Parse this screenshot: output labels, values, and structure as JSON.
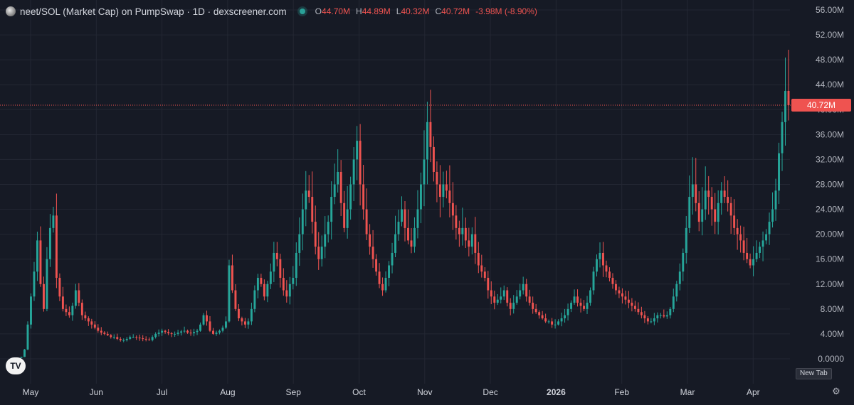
{
  "header": {
    "title": "neet/SOL (Market Cap) on PumpSwap · 1D · dexscreener.com",
    "ohlc": {
      "o_label": "O",
      "o_value": "44.70M",
      "h_label": "H",
      "h_value": "44.89M",
      "l_label": "L",
      "l_value": "40.32M",
      "c_label": "C",
      "c_value": "40.72M",
      "change": "-3.98M (-8.90%)"
    }
  },
  "price_badge": "40.72M",
  "new_tab_label": "New Tab",
  "tv_logo_text": "TV",
  "colors": {
    "up": "#26a69a",
    "down": "#ef5350",
    "background": "#161a25",
    "grid": "#232733"
  },
  "chart_data": {
    "type": "candlestick",
    "y_unit": "market cap (USD)",
    "ylim": [
      0,
      56
    ],
    "y_ticks": [
      "0.0000",
      "4.00M",
      "8.00M",
      "12.00M",
      "16.00M",
      "20.00M",
      "24.00M",
      "28.00M",
      "32.00M",
      "36.00M",
      "40.00M",
      "44.00M",
      "48.00M",
      "52.00M",
      "56.00M"
    ],
    "x_ticks": [
      "May",
      "Jun",
      "Jul",
      "Aug",
      "Sep",
      "Oct",
      "Nov",
      "Dec",
      "2026",
      "Feb",
      "Mar",
      "Apr"
    ],
    "last_close": 40.72,
    "close_series_millions": [
      0.3,
      1.5,
      5.5,
      10,
      14,
      19,
      12,
      8,
      16,
      21,
      23,
      13,
      10,
      8,
      7.5,
      7,
      8.5,
      11,
      9,
      7,
      6.5,
      6,
      5.5,
      5,
      4.5,
      4.2,
      4,
      3.8,
      3.5,
      3.5,
      3.2,
      3,
      3,
      3.2,
      3.5,
      3.5,
      3.4,
      3.3,
      3.2,
      3.1,
      3,
      3.5,
      4,
      4.2,
      4.5,
      4.3,
      4.1,
      4,
      4,
      4.2,
      4.4,
      4.5,
      4.2,
      4.1,
      4.3,
      4.5,
      5.5,
      7,
      6,
      4.5,
      4,
      4.2,
      4.5,
      5,
      6,
      15,
      11,
      8,
      6.5,
      6,
      5.5,
      6,
      8,
      11,
      13,
      12,
      10,
      12,
      14,
      17,
      16,
      13,
      11,
      10,
      12,
      13,
      17,
      20,
      24,
      27,
      26,
      22,
      18,
      16,
      18,
      20,
      22,
      26,
      28,
      30,
      25,
      21,
      24,
      28,
      32,
      35,
      28,
      24,
      20,
      18,
      16,
      14,
      12,
      11,
      13,
      15,
      17,
      20,
      22,
      24,
      21,
      19,
      18,
      21,
      24,
      28,
      32,
      38,
      34,
      30,
      28,
      26,
      28,
      27,
      25,
      23,
      21,
      20,
      21,
      19,
      18,
      20,
      17,
      15,
      14,
      13,
      11,
      10,
      9,
      9.5,
      10,
      11,
      9,
      8,
      9,
      10,
      11,
      12,
      10,
      9,
      8,
      7.5,
      7,
      6.5,
      6,
      6,
      5.5,
      5.5,
      6,
      6.5,
      7,
      8,
      9,
      10,
      9,
      8.5,
      8,
      9,
      11,
      14,
      16,
      17,
      15,
      14,
      13,
      12,
      11,
      10.5,
      10,
      9.5,
      9,
      8.5,
      8,
      7.5,
      7,
      6.5,
      6,
      6,
      6.5,
      7,
      7,
      6.8,
      7,
      8,
      10,
      12,
      14,
      17,
      21,
      26,
      28,
      25,
      22,
      24,
      27,
      26,
      24,
      22,
      25,
      27,
      26,
      25,
      23,
      21,
      20,
      19,
      17,
      16,
      15,
      16,
      17,
      18,
      19,
      20,
      22,
      24,
      27,
      33,
      38,
      43,
      40.72
    ]
  }
}
